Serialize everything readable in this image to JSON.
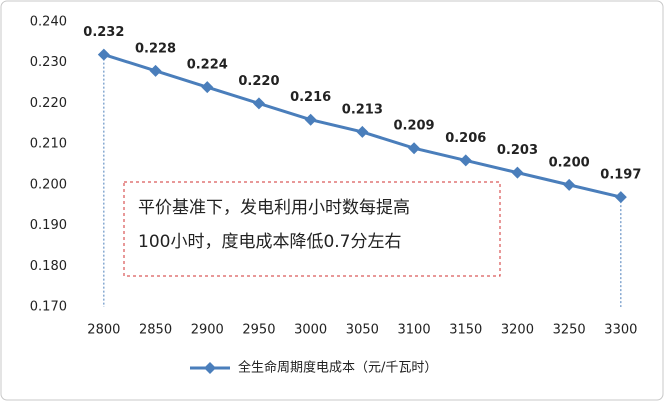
{
  "chart_data": {
    "type": "line",
    "categories": [
      "2800",
      "2850",
      "2900",
      "2950",
      "3000",
      "3050",
      "3100",
      "3150",
      "3200",
      "3250",
      "3300"
    ],
    "series": [
      {
        "name": "全生命周期度电成本（元/千瓦时）",
        "color": "#4a7ebb",
        "values": [
          0.232,
          0.228,
          0.224,
          0.22,
          0.216,
          0.213,
          0.209,
          0.206,
          0.203,
          0.2,
          0.197
        ],
        "value_labels": [
          "0.232",
          "0.228",
          "0.224",
          "0.220",
          "0.216",
          "0.213",
          "0.209",
          "0.206",
          "0.203",
          "0.200",
          "0.197"
        ]
      }
    ],
    "ylim": [
      0.17,
      0.24
    ],
    "yticks": [
      {
        "value": 0.17,
        "label": "0.170"
      },
      {
        "value": 0.18,
        "label": "0.180"
      },
      {
        "value": 0.19,
        "label": "0.190"
      },
      {
        "value": 0.2,
        "label": "0.200"
      },
      {
        "value": 0.21,
        "label": "0.210"
      },
      {
        "value": 0.22,
        "label": "0.220"
      },
      {
        "value": 0.23,
        "label": "0.230"
      },
      {
        "value": 0.24,
        "label": "0.240"
      }
    ],
    "annotations": [
      "平价基准下，发电利用小时数每提高",
      "100小时，度电成本降低0.7分左右"
    ],
    "legend": "bottom"
  }
}
